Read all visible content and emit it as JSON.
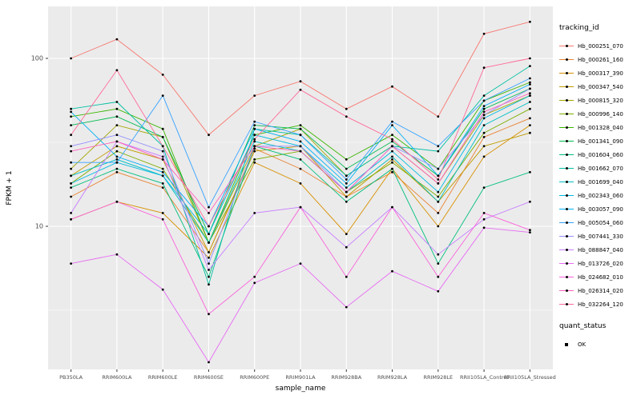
{
  "chart_data": {
    "type": "line",
    "xlabel": "sample_name",
    "ylabel": "FPKM + 1",
    "y_scale": "log10",
    "y_ticks": [
      10,
      100
    ],
    "y_minor_gridlines": [
      3.162,
      31.623
    ],
    "panel_bg": "#EBEBEB",
    "grid_color": "#FFFFFF",
    "point_color": "#000000",
    "x_categories": [
      "PB350LA",
      "RRIM600LA",
      "RRIM600LE",
      "RRIM600SE",
      "RRIM600PE",
      "RRIM901LA",
      "RRIM928BA",
      "RRIM928LA",
      "RRIM928LE",
      "RRII105LA_Control",
      "RRII105LA_Stressed"
    ],
    "series": [
      {
        "name": "Hb_000251_070",
        "color": "#F8766D",
        "values": [
          100,
          130,
          80,
          35,
          60,
          73,
          50,
          68,
          45,
          140,
          165
        ]
      },
      {
        "name": "Hb_000261_160",
        "color": "#EA8331",
        "values": [
          15,
          21,
          17,
          7,
          29,
          22,
          15,
          21,
          12,
          34,
          44
        ]
      },
      {
        "name": "Hb_000317_390",
        "color": "#D89000",
        "values": [
          11,
          14,
          12,
          6.5,
          24,
          18,
          9,
          22,
          10,
          26,
          40
        ]
      },
      {
        "name": "Hb_000347_540",
        "color": "#C09B00",
        "values": [
          20,
          30,
          25,
          7,
          28,
          30,
          15,
          25,
          14,
          30,
          36
        ]
      },
      {
        "name": "Hb_000815_320",
        "color": "#A3A500",
        "values": [
          22,
          40,
          34,
          8,
          30,
          38,
          20,
          30,
          18,
          46,
          60
        ]
      },
      {
        "name": "Hb_000996_140",
        "color": "#7CAE00",
        "values": [
          18,
          28,
          22,
          8,
          25,
          28,
          16,
          24,
          15,
          36,
          50
        ]
      },
      {
        "name": "Hb_001328_040",
        "color": "#39B600",
        "values": [
          45,
          50,
          38,
          8,
          35,
          40,
          25,
          35,
          22,
          56,
          72
        ]
      },
      {
        "name": "Hb_001341_090",
        "color": "#00BB4E",
        "values": [
          40,
          45,
          34,
          9,
          40,
          38,
          22,
          32,
          20,
          50,
          66
        ]
      },
      {
        "name": "Hb_001604_060",
        "color": "#00BF7D",
        "values": [
          17,
          22,
          18,
          5,
          30,
          25,
          14,
          22,
          6,
          17,
          21
        ]
      },
      {
        "name": "Hb_001662_070",
        "color": "#00C1A3",
        "values": [
          50,
          55,
          30,
          4.5,
          38,
          35,
          20,
          30,
          28,
          60,
          90
        ]
      },
      {
        "name": "Hb_001699_040",
        "color": "#00BFC4",
        "values": [
          20,
          25,
          20,
          8,
          32,
          28,
          16,
          26,
          14,
          40,
          55
        ]
      },
      {
        "name": "Hb_002343_060",
        "color": "#00BAE0",
        "values": [
          18,
          24,
          20,
          9,
          35,
          30,
          17,
          28,
          16,
          44,
          60
        ]
      },
      {
        "name": "Hb_003057_090",
        "color": "#00B0F6",
        "values": [
          48,
          26,
          21,
          10,
          38,
          32,
          18,
          40,
          20,
          52,
          70
        ]
      },
      {
        "name": "Hb_005054_060",
        "color": "#35A2FF",
        "values": [
          24,
          24,
          60,
          13,
          42,
          35,
          19,
          42,
          30,
          56,
          76
        ]
      },
      {
        "name": "Hb_007441_330",
        "color": "#9590FF",
        "values": [
          30,
          35,
          28,
          6,
          30,
          30,
          16,
          30,
          22,
          46,
          66
        ]
      },
      {
        "name": "Hb_088847_040",
        "color": "#C77CFF",
        "values": [
          12,
          32,
          26,
          5.5,
          12,
          13,
          7.5,
          13,
          6.8,
          11,
          14
        ]
      },
      {
        "name": "Hb_013726_020",
        "color": "#E76BF3",
        "values": [
          6,
          6.8,
          4.2,
          1.55,
          4.6,
          6,
          3.3,
          5.4,
          4.1,
          9.8,
          9.2
        ]
      },
      {
        "name": "Hb_024682_010",
        "color": "#FA62DB",
        "values": [
          11,
          14,
          11,
          3,
          5,
          13,
          5,
          13,
          5,
          12,
          9.5
        ]
      },
      {
        "name": "Hb_026314_020",
        "color": "#FF62BC",
        "values": [
          28,
          32,
          25,
          12,
          30,
          28,
          16,
          30,
          18,
          48,
          62
        ]
      },
      {
        "name": "Hb_032264_120",
        "color": "#FF6A98",
        "values": [
          35,
          85,
          30,
          10,
          33,
          65,
          45,
          33,
          19,
          88,
          100
        ]
      }
    ],
    "legend": {
      "tracking_title": "tracking_id",
      "quant_title": "quant_status",
      "quant_items": [
        {
          "label": "OK",
          "color": "#000000"
        }
      ]
    }
  }
}
